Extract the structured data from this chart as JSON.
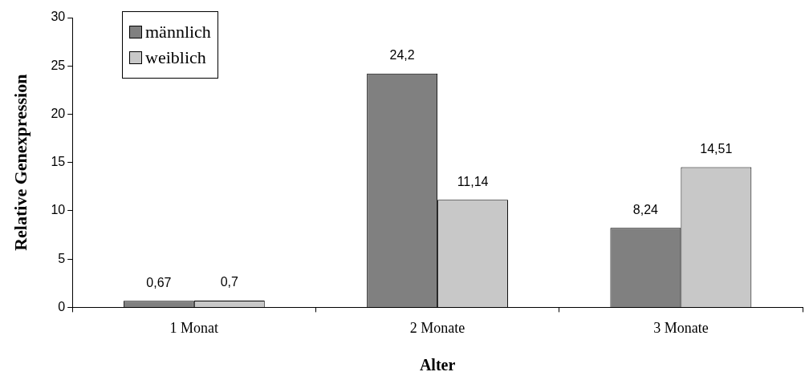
{
  "chart_data": {
    "type": "bar",
    "xlabel": "Alter",
    "ylabel": "Relative Genexpression",
    "categories": [
      "1 Monat",
      "2 Monate",
      "3 Monate"
    ],
    "series": [
      {
        "name": "männlich",
        "color": "#808080",
        "values": [
          0.67,
          24.2,
          8.24
        ],
        "value_labels": [
          "0,67",
          "24,2",
          "8,24"
        ]
      },
      {
        "name": "weiblich",
        "color": "#c8c8c8",
        "values": [
          0.7,
          11.14,
          14.51
        ],
        "value_labels": [
          "0,7",
          "11,14",
          "14,51"
        ]
      }
    ],
    "ylim": [
      0,
      30
    ],
    "yticks": [
      0,
      5,
      10,
      15,
      20,
      25,
      30
    ],
    "grid": false,
    "legend": "top left"
  }
}
